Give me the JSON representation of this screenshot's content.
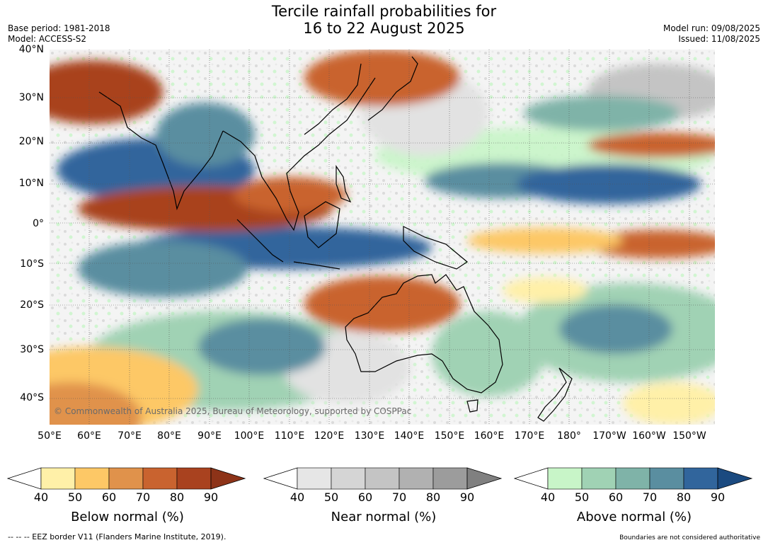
{
  "header": {
    "title_line1": "Tercile rainfall probabilities for",
    "title_line2": "16 to 22 August 2025",
    "base_period": "Base period: 1981-2018",
    "model": "Model: ACCESS-S2",
    "model_run": "Model run: 09/08/2025",
    "issued": "Issued: 11/08/2025"
  },
  "map": {
    "copyright": "© Commonwealth of Australia 2025, Bureau of Meteorology, supported by COSPPac",
    "lat_labels": [
      "40°N",
      "30°N",
      "20°N",
      "10°N",
      "0°",
      "10°S",
      "20°S",
      "30°S",
      "40°S"
    ],
    "lon_labels": [
      "50°E",
      "60°E",
      "70°E",
      "80°E",
      "90°E",
      "100°E",
      "110°E",
      "120°E",
      "130°E",
      "140°E",
      "150°E",
      "160°E",
      "170°E",
      "180°",
      "170°W",
      "160°W",
      "150°W"
    ]
  },
  "colorbars": {
    "below": {
      "title": "Below normal (%)",
      "ticks": [
        "40",
        "50",
        "60",
        "70",
        "80",
        "90"
      ],
      "colors": [
        "#fff0a8",
        "#fdc866",
        "#e0924b",
        "#c9632f",
        "#a9421f",
        "#8d3318"
      ]
    },
    "near": {
      "title": "Near normal (%)",
      "ticks": [
        "40",
        "50",
        "60",
        "70",
        "80",
        "90"
      ],
      "colors": [
        "#e6e6e6",
        "#d5d5d5",
        "#c4c4c4",
        "#b1b1b1",
        "#9c9c9c",
        "#808080"
      ]
    },
    "above": {
      "title": "Above normal (%)",
      "ticks": [
        "40",
        "50",
        "60",
        "70",
        "80",
        "90"
      ],
      "colors": [
        "#c8f5c8",
        "#a0d2b4",
        "#7fb3a8",
        "#5a8ea0",
        "#31659c",
        "#1b4a80"
      ]
    }
  },
  "footer": {
    "eez": "--  --  -- EEZ border V11 (Flanders Marine Institute, 2019).",
    "disclaimer": "Boundaries are not considered authoritative"
  }
}
